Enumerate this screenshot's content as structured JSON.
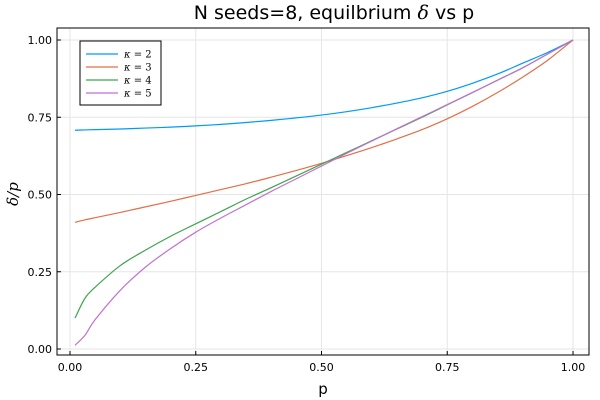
{
  "chart_data": {
    "type": "line",
    "title": "N seeds=8, equilbrium δ vs p",
    "xlabel": "p",
    "ylabel": "δ/p",
    "xlim": [
      0.0,
      1.0
    ],
    "ylim": [
      0.0,
      1.0
    ],
    "xticks": [
      "0.00",
      "0.25",
      "0.50",
      "0.75",
      "1.00"
    ],
    "yticks": [
      "0.00",
      "0.25",
      "0.50",
      "0.75",
      "1.00"
    ],
    "grid": true,
    "legend": "top-left",
    "x": [
      0.01,
      0.03,
      0.05,
      0.1,
      0.15,
      0.2,
      0.25,
      0.3,
      0.35,
      0.4,
      0.45,
      0.5,
      0.55,
      0.6,
      0.65,
      0.7,
      0.75,
      0.8,
      0.85,
      0.9,
      0.95,
      1.0
    ],
    "series": [
      {
        "name": "κ = 2",
        "color": "#009AFA",
        "values": [
          0.708,
          0.709,
          0.71,
          0.712,
          0.715,
          0.718,
          0.722,
          0.727,
          0.733,
          0.74,
          0.748,
          0.757,
          0.768,
          0.781,
          0.796,
          0.813,
          0.834,
          0.86,
          0.89,
          0.925,
          0.96,
          1.0
        ]
      },
      {
        "name": "κ = 3",
        "color": "#E36F47",
        "values": [
          0.41,
          0.418,
          0.425,
          0.442,
          0.46,
          0.478,
          0.497,
          0.516,
          0.535,
          0.556,
          0.578,
          0.601,
          0.626,
          0.652,
          0.68,
          0.71,
          0.745,
          0.785,
          0.83,
          0.88,
          0.935,
          1.0
        ]
      },
      {
        "name": "κ = 4",
        "color": "#3EA44E",
        "values": [
          0.1,
          0.165,
          0.2,
          0.27,
          0.32,
          0.365,
          0.405,
          0.445,
          0.485,
          0.522,
          0.56,
          0.598,
          0.636,
          0.674,
          0.712,
          0.75,
          0.79,
          0.83,
          0.87,
          0.91,
          0.955,
          1.0
        ]
      },
      {
        "name": "κ = 5",
        "color": "#C271D2",
        "values": [
          0.012,
          0.045,
          0.095,
          0.19,
          0.265,
          0.325,
          0.378,
          0.424,
          0.467,
          0.51,
          0.551,
          0.592,
          0.633,
          0.673,
          0.713,
          0.752,
          0.791,
          0.83,
          0.87,
          0.91,
          0.955,
          1.0
        ]
      }
    ]
  }
}
